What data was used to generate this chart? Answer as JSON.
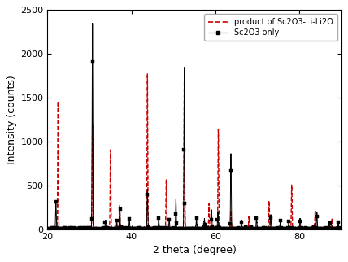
{
  "title": "",
  "xlabel": "2 theta (degree)",
  "ylabel": "Intensity (counts)",
  "xlim": [
    20,
    90
  ],
  "ylim": [
    0,
    2500
  ],
  "yticks": [
    0,
    500,
    1000,
    1500,
    2000,
    2500
  ],
  "xticks": [
    20,
    40,
    60,
    80
  ],
  "legend_labels": [
    "product of Sc2O3-Li-Li2O",
    "Sc2O3 only"
  ],
  "legend_colors": [
    "#cc0000",
    "#000000"
  ],
  "background_color": "#ffffff",
  "sc2o3_peaks": [
    [
      22.0,
      310
    ],
    [
      30.7,
      2350
    ],
    [
      33.8,
      90
    ],
    [
      36.5,
      90
    ],
    [
      37.2,
      270
    ],
    [
      39.5,
      100
    ],
    [
      43.8,
      450
    ],
    [
      46.5,
      120
    ],
    [
      49.0,
      110
    ],
    [
      50.6,
      340
    ],
    [
      52.6,
      1840
    ],
    [
      55.5,
      120
    ],
    [
      57.4,
      110
    ],
    [
      59.1,
      210
    ],
    [
      60.6,
      200
    ],
    [
      63.7,
      850
    ],
    [
      66.2,
      90
    ],
    [
      69.8,
      130
    ],
    [
      73.2,
      160
    ],
    [
      75.5,
      90
    ],
    [
      77.5,
      90
    ],
    [
      80.2,
      110
    ],
    [
      84.2,
      190
    ],
    [
      87.2,
      80
    ],
    [
      89.3,
      80
    ]
  ],
  "product_peaks": [
    [
      22.5,
      1450
    ],
    [
      30.7,
      1200
    ],
    [
      35.0,
      900
    ],
    [
      37.2,
      250
    ],
    [
      43.8,
      1770
    ],
    [
      48.3,
      550
    ],
    [
      52.6,
      1700
    ],
    [
      58.5,
      280
    ],
    [
      60.7,
      1130
    ],
    [
      63.7,
      200
    ],
    [
      68.0,
      130
    ],
    [
      72.8,
      320
    ],
    [
      78.2,
      500
    ],
    [
      83.8,
      200
    ],
    [
      87.8,
      110
    ]
  ],
  "sigma_narrow": 0.08,
  "sigma_wide": 0.25,
  "n_points": 7000,
  "marker_every": 25,
  "marker_size": 2.5
}
